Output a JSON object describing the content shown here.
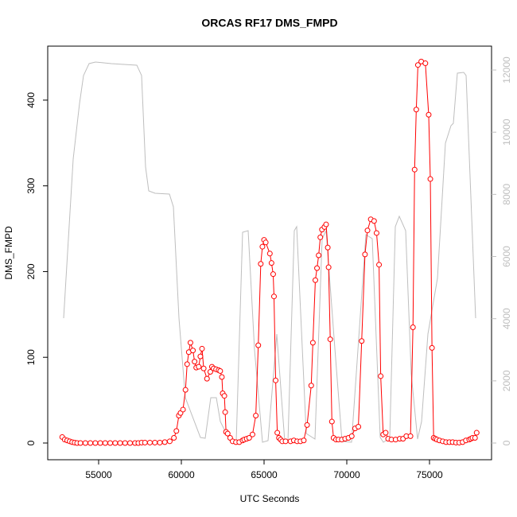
{
  "chart_data": {
    "type": "line",
    "title": "ORCAS RF17 DMS_FMPD",
    "x_label": "UTC Seconds",
    "y_label": "DMS_FMPD",
    "xlim": [
      51923,
      78750
    ],
    "xticks": [
      55000,
      60000,
      65000,
      70000,
      75000
    ],
    "ylim": [
      -19.5,
      463
    ],
    "yticks": [
      0,
      100,
      200,
      300,
      400
    ],
    "y2lim": [
      -537,
      12768
    ],
    "y2ticks": [
      0,
      2000,
      4000,
      6000,
      8000,
      10000,
      12000
    ],
    "y2_color": "#bebebe",
    "series": [
      {
        "color": "#bebebe",
        "axis": "y2",
        "markers": false,
        "x": [
          52885,
          53462,
          53846,
          54087,
          54423,
          54808,
          55769,
          57308,
          57596,
          57837,
          58029,
          58413,
          59279,
          59519,
          59856,
          60240,
          61154,
          61442,
          61779,
          62115,
          62356,
          62981,
          63317,
          63702,
          64038,
          64423,
          64904,
          65240,
          65769,
          66250,
          66442,
          66827,
          66971,
          67548,
          68077,
          68510,
          68750,
          69231,
          69712,
          70288,
          71154,
          71538,
          72019,
          72212,
          72596,
          72933,
          73173,
          73558,
          73894,
          74279,
          74519,
          74904,
          75481,
          75962,
          76298,
          76442,
          76683,
          77067,
          77212,
          77788
        ],
        "values": [
          4017,
          9135,
          10926,
          11822,
          12206,
          12257,
          12206,
          12155,
          11822,
          8879,
          8111,
          8035,
          8009,
          7600,
          4017,
          1459,
          179,
          154,
          1459,
          1459,
          691,
          26,
          26,
          6781,
          6832,
          2994,
          26,
          77,
          3506,
          51,
          26,
          6832,
          6960,
          307,
          128,
          6576,
          6832,
          3378,
          51,
          26,
          6704,
          6576,
          179,
          26,
          154,
          6960,
          7293,
          6832,
          2226,
          128,
          691,
          3506,
          5297,
          9647,
          10210,
          10287,
          11899,
          11924,
          11822,
          4017
        ]
      },
      {
        "color": "#ff0000",
        "markers": true,
        "x": [
          52800,
          52950,
          53100,
          53250,
          53400,
          53550,
          53700,
          53900,
          54200,
          54500,
          54800,
          55100,
          55400,
          55700,
          56000,
          56300,
          56600,
          56900,
          57200,
          57400,
          57600,
          57800,
          58100,
          58400,
          58700,
          59000,
          59300,
          59550,
          59700,
          59850,
          59950,
          60100,
          60250,
          60350,
          60450,
          60550,
          60700,
          60800,
          60900,
          61050,
          61150,
          61250,
          61350,
          61550,
          61750,
          61850,
          61950,
          62100,
          62250,
          62350,
          62450,
          62500,
          62600,
          62650,
          62700,
          62800,
          62950,
          63100,
          63300,
          63500,
          63700,
          63800,
          63950,
          64100,
          64300,
          64500,
          64650,
          64800,
          64900,
          65000,
          65100,
          65350,
          65450,
          65550,
          65600,
          65700,
          65800,
          65900,
          66000,
          66100,
          66300,
          66600,
          66800,
          67000,
          67200,
          67400,
          67600,
          67850,
          67950,
          68100,
          68200,
          68300,
          68400,
          68500,
          68650,
          68750,
          68850,
          68900,
          69000,
          69100,
          69200,
          69350,
          69500,
          69700,
          69900,
          70100,
          70300,
          70500,
          70700,
          70900,
          71100,
          71250,
          71450,
          71650,
          71800,
          71950,
          72050,
          72200,
          72350,
          72500,
          72700,
          72950,
          73200,
          73400,
          73600,
          73850,
          74000,
          74100,
          74200,
          74300,
          74500,
          74750,
          74950,
          75050,
          75150,
          75250,
          75350,
          75450,
          75600,
          75800,
          76000,
          76200,
          76400,
          76600,
          76800,
          77000,
          77200,
          77400,
          77500,
          77600,
          77750,
          77850
        ],
        "values": [
          7,
          4,
          3,
          2,
          1,
          0.5,
          0,
          0,
          0,
          0,
          0,
          0,
          0,
          0,
          0,
          0,
          0,
          0,
          0,
          0,
          0.5,
          0.5,
          0.5,
          0.5,
          0.5,
          1,
          2,
          6,
          14,
          32,
          35,
          39,
          62,
          92,
          106,
          117,
          108,
          95,
          88,
          89,
          101,
          110,
          87,
          75,
          83,
          89,
          87,
          86,
          85,
          84,
          77,
          58,
          55,
          36,
          13,
          11,
          6,
          2,
          1,
          1,
          3,
          4,
          5,
          6,
          10,
          32,
          114,
          209,
          229,
          237,
          234,
          221,
          210,
          197,
          171,
          73,
          12,
          6,
          4,
          2,
          2,
          2,
          3,
          2,
          2,
          3,
          21,
          67,
          117,
          190,
          204,
          219,
          240,
          249,
          252,
          255,
          228,
          205,
          121,
          25,
          6,
          4,
          4,
          4,
          5,
          6,
          8,
          17,
          19,
          119,
          220,
          248,
          261,
          259,
          245,
          208,
          78,
          10,
          12,
          5,
          4,
          4,
          5,
          5,
          8,
          8,
          135,
          319,
          389,
          441,
          445,
          443,
          383,
          308,
          111,
          6,
          5,
          4,
          3,
          2,
          1,
          1,
          1,
          0.5,
          0.5,
          1,
          3,
          4,
          5,
          6,
          6,
          12
        ]
      }
    ]
  }
}
